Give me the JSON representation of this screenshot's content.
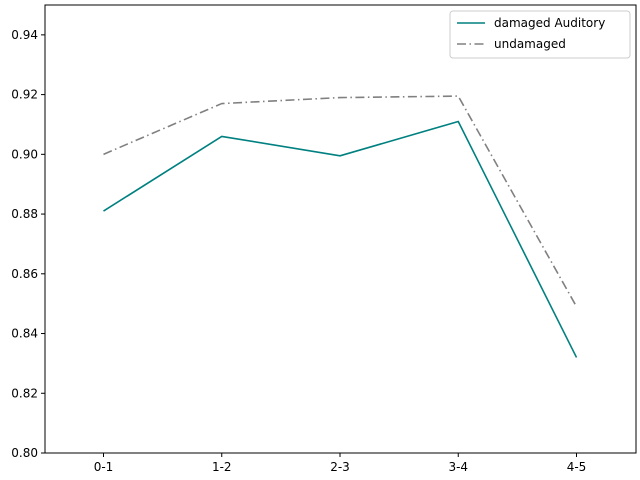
{
  "chart_data": {
    "type": "line",
    "title": "",
    "xlabel": "",
    "ylabel": "",
    "categories": [
      "0-1",
      "1-2",
      "2-3",
      "3-4",
      "4-5"
    ],
    "ylim": [
      0.8,
      0.95
    ],
    "yticks": [
      0.8,
      0.82,
      0.84,
      0.86,
      0.88,
      0.9,
      0.92,
      0.94
    ],
    "ytick_labels": [
      "0.80",
      "0.82",
      "0.84",
      "0.86",
      "0.88",
      "0.90",
      "0.92",
      "0.94"
    ],
    "grid": false,
    "legend_position": "top-right",
    "series": [
      {
        "name": "damaged Auditory",
        "values": [
          0.881,
          0.906,
          0.8995,
          0.911,
          0.832
        ],
        "color": "#008080",
        "style": "solid"
      },
      {
        "name": "undamaged",
        "values": [
          0.9,
          0.917,
          0.919,
          0.9195,
          0.849
        ],
        "color": "#808080",
        "style": "dashdot"
      }
    ]
  }
}
